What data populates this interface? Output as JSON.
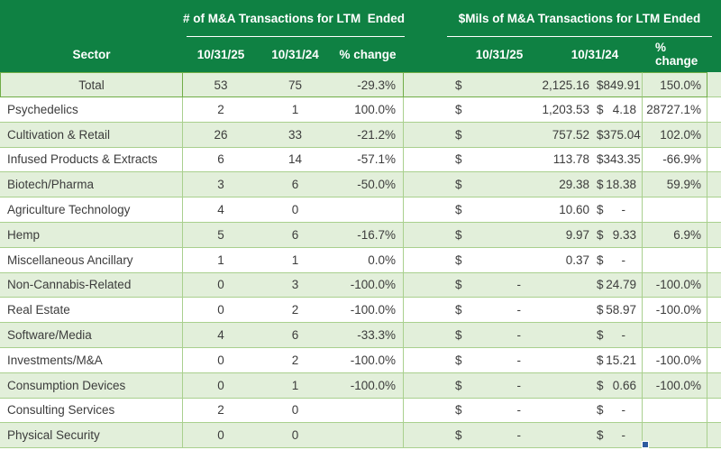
{
  "table": {
    "currency_symbol": "$",
    "header": {
      "sector_label": "Sector",
      "count_section_title": "# of M&A Transactions for LTM  Ended",
      "dollar_section_title": "$Mils of M&A Transactions for LTM Ended",
      "count_columns": [
        "10/31/25",
        "10/31/24",
        "% change"
      ],
      "dollar_columns": [
        "10/31/25",
        "10/31/24",
        "% change"
      ]
    },
    "rows": [
      {
        "sector": "Total",
        "n25": "53",
        "n24": "75",
        "npct": "-29.3%",
        "d25": "2,125.16",
        "d24": "849.91",
        "dpct": "150.0%",
        "total": true
      },
      {
        "sector": "Psychedelics",
        "n25": "2",
        "n24": "1",
        "npct": "100.0%",
        "d25": "1,203.53",
        "d24": "4.18",
        "dpct": "28727.1%"
      },
      {
        "sector": "Cultivation & Retail",
        "n25": "26",
        "n24": "33",
        "npct": "-21.2%",
        "d25": "757.52",
        "d24": "375.04",
        "dpct": "102.0%"
      },
      {
        "sector": "Infused Products & Extracts",
        "n25": "6",
        "n24": "14",
        "npct": "-57.1%",
        "d25": "113.78",
        "d24": "343.35",
        "dpct": "-66.9%"
      },
      {
        "sector": "Biotech/Pharma",
        "n25": "3",
        "n24": "6",
        "npct": "-50.0%",
        "d25": "29.38",
        "d24": "18.38",
        "dpct": "59.9%"
      },
      {
        "sector": "Agriculture Technology",
        "n25": "4",
        "n24": "0",
        "npct": "",
        "d25": "10.60",
        "d24": "-",
        "dpct": ""
      },
      {
        "sector": "Hemp",
        "n25": "5",
        "n24": "6",
        "npct": "-16.7%",
        "d25": "9.97",
        "d24": "9.33",
        "dpct": "6.9%"
      },
      {
        "sector": "Miscellaneous Ancillary",
        "n25": "1",
        "n24": "1",
        "npct": "0.0%",
        "d25": "0.37",
        "d24": "-",
        "dpct": ""
      },
      {
        "sector": "Non-Cannabis-Related",
        "n25": "0",
        "n24": "3",
        "npct": "-100.0%",
        "d25": "-",
        "d24": "24.79",
        "dpct": "-100.0%"
      },
      {
        "sector": "Real Estate",
        "n25": "0",
        "n24": "2",
        "npct": "-100.0%",
        "d25": "-",
        "d24": "58.97",
        "dpct": "-100.0%"
      },
      {
        "sector": "Software/Media",
        "n25": "4",
        "n24": "6",
        "npct": "-33.3%",
        "d25": "-",
        "d24": "-",
        "dpct": ""
      },
      {
        "sector": "Investments/M&A",
        "n25": "0",
        "n24": "2",
        "npct": "-100.0%",
        "d25": "-",
        "d24": "15.21",
        "dpct": "-100.0%"
      },
      {
        "sector": "Consumption Devices",
        "n25": "0",
        "n24": "1",
        "npct": "-100.0%",
        "d25": "-",
        "d24": "0.66",
        "dpct": "-100.0%"
      },
      {
        "sector": "Consulting Services",
        "n25": "2",
        "n24": "0",
        "npct": "",
        "d25": "-",
        "d24": "-",
        "dpct": ""
      },
      {
        "sector": "Physical Security",
        "n25": "0",
        "n24": "0",
        "npct": "",
        "d25": "-",
        "d24": "-",
        "dpct": ""
      }
    ],
    "colors": {
      "header_green": "#0f8143",
      "row_light_green": "#e2efda",
      "gridline_green": "#a9d08e",
      "total_border_green": "#70ad47",
      "body_text": "#3c3c3c",
      "fill_handle_blue": "#2e5b9f"
    }
  }
}
